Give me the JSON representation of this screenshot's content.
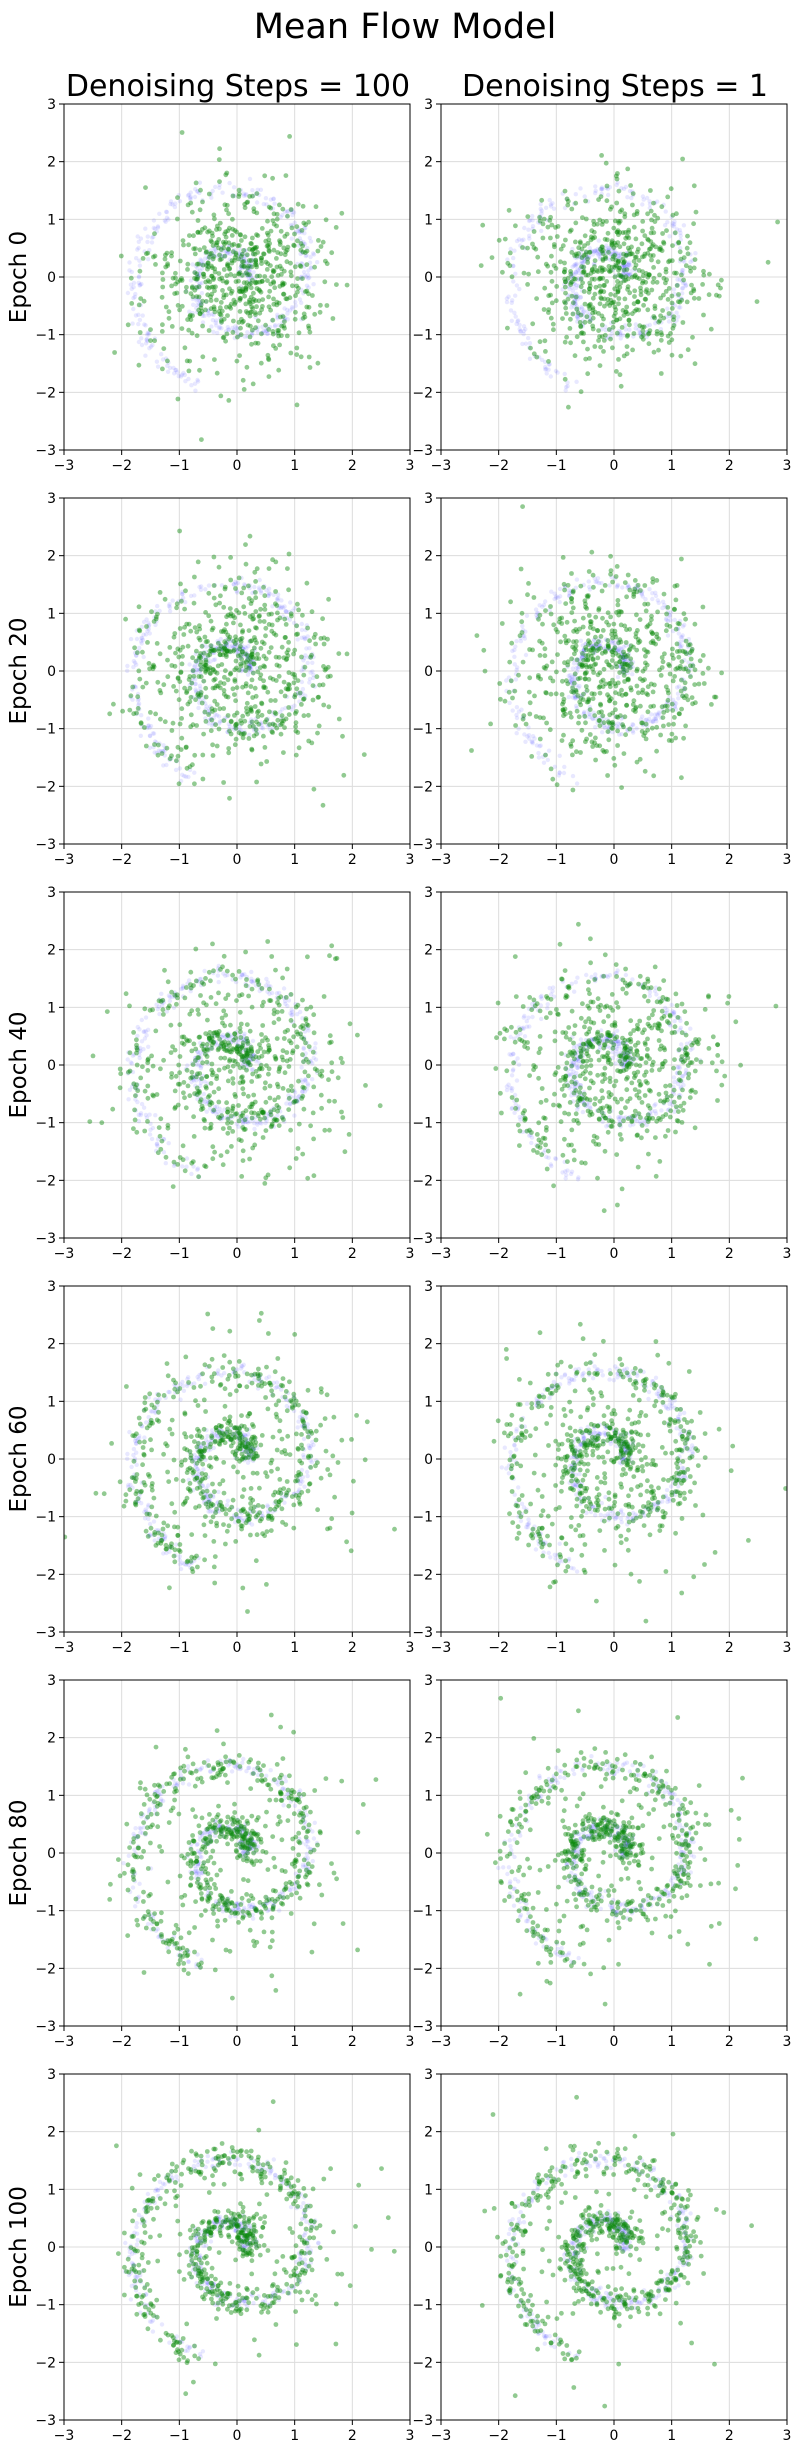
{
  "title": "Mean Flow Model",
  "columns": [
    "Denoising Steps = 100",
    "Denoising Steps = 1"
  ],
  "rows": [
    "Epoch 0",
    "Epoch 20",
    "Epoch 40",
    "Epoch 60",
    "Epoch 80",
    "Epoch 100"
  ],
  "colors": {
    "target": "#5b5bff",
    "generated": "#0a8a0a",
    "grid": "#dcdcdc"
  },
  "chart_data": {
    "type": "scatter",
    "grid": true,
    "xlim": [
      -3,
      3
    ],
    "ylim": [
      -3,
      3
    ],
    "xticks": [
      "−3",
      "−2",
      "−1",
      "0",
      "1",
      "2",
      "3"
    ],
    "yticks": [
      "3",
      "2",
      "1",
      "0",
      "−1",
      "−2",
      "−3"
    ],
    "series": [
      {
        "color": "#5b5bff",
        "description_shape": "spiral",
        "r_min": 0.15,
        "r_max": 2.0,
        "turns": 1.7
      },
      {
        "color": "#0a8a0a",
        "description_shape": "cloud-to-spiral"
      }
    ],
    "panels_spiral_fraction": [
      [
        0.0,
        0.0
      ],
      [
        0.15,
        0.15
      ],
      [
        0.35,
        0.3
      ],
      [
        0.55,
        0.5
      ],
      [
        0.75,
        0.7
      ],
      [
        0.85,
        0.85
      ]
    ]
  }
}
